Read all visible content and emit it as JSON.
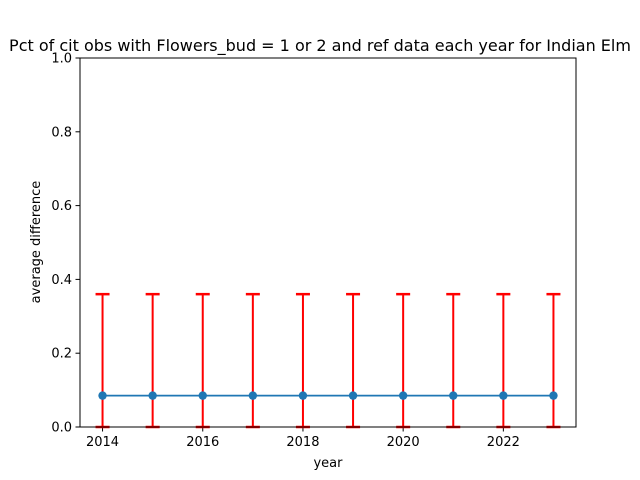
{
  "chart_data": {
    "type": "line",
    "title": "Pct of cit obs with Flowers_bud = 1 or 2 and ref data each year for Indian Elm",
    "xlabel": "year",
    "ylabel": "average difference",
    "x": [
      2014,
      2015,
      2016,
      2017,
      2018,
      2019,
      2020,
      2021,
      2022,
      2023
    ],
    "series": [
      {
        "values": [
          0.085,
          0.085,
          0.085,
          0.085,
          0.085,
          0.085,
          0.085,
          0.085,
          0.085,
          0.085
        ],
        "error_low": [
          0.0,
          0.0,
          0.0,
          0.0,
          0.0,
          0.0,
          0.0,
          0.0,
          0.0,
          0.0
        ],
        "error_high": [
          0.36,
          0.36,
          0.36,
          0.36,
          0.36,
          0.36,
          0.36,
          0.36,
          0.36,
          0.36
        ],
        "color": "#1f77b4",
        "error_color": "#ff0000"
      }
    ],
    "xlim": [
      2013.55,
      2023.45
    ],
    "ylim": [
      0.0,
      1.0
    ],
    "xticks": [
      2014,
      2016,
      2018,
      2020,
      2022
    ],
    "xtick_labels": [
      "2014",
      "2016",
      "2018",
      "2020",
      "2022"
    ],
    "yticks": [
      0.0,
      0.2,
      0.4,
      0.6,
      0.8,
      1.0
    ],
    "ytick_labels": [
      "0.0",
      "0.2",
      "0.4",
      "0.6",
      "0.8",
      "1.0"
    ],
    "grid": false,
    "legend": false
  }
}
